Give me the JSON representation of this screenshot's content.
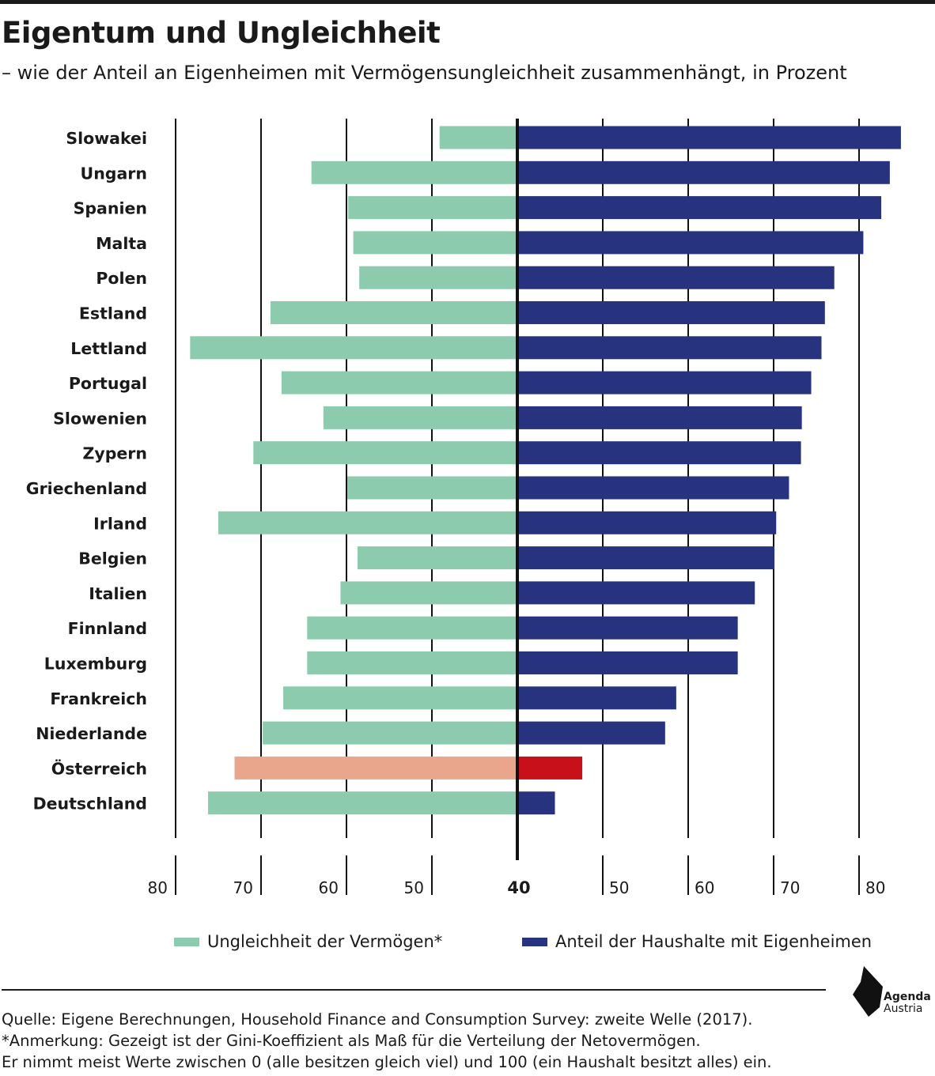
{
  "title": "Eigentum und Ungleichheit",
  "subtitle": "– wie der Anteil an Eigenheimen mit Vermögensungleichheit zusammenhängt, in Prozent",
  "legend": {
    "left_label": "Ungleichheit der Vermögen*",
    "right_label": "Anteil der Haushalte mit Eigenheimen"
  },
  "source": {
    "line1": "Quelle: Eigene Berechnungen, Household Finance and Consumption Survey: zweite Welle (2017).",
    "line2": "*Anmerkung: Gezeigt ist der Gini-Koeffizient als Maß für die Verteilung der Netovermögen.",
    "line3": "Er nimmt meist Werte zwischen 0 (alle besitzen gleich viel) und 100 (ein Haushalt besitzt alles) ein."
  },
  "logo": {
    "line1": "Agenda",
    "line2": "Austria"
  },
  "colors": {
    "inequality": "#8ccbad",
    "ownership": "#27337e",
    "austria_inequality": "#eaa58d",
    "austria_ownership": "#c8101a",
    "axis": "#111111"
  },
  "chart_data": {
    "type": "bar",
    "orientation": "horizontal-diverging",
    "baseline": 40,
    "categories": [
      "Slowakei",
      "Ungarn",
      "Spanien",
      "Malta",
      "Polen",
      "Estland",
      "Lettland",
      "Portugal",
      "Slowenien",
      "Zypern",
      "Griechenland",
      "Irland",
      "Belgien",
      "Italien",
      "Finnland",
      "Luxemburg",
      "Frankreich",
      "Niederlande",
      "Österreich",
      "Deutschland"
    ],
    "highlight": "Österreich",
    "series": [
      {
        "name": "Ungleichheit der Vermögen*",
        "side": "left",
        "values": [
          49.1,
          64.1,
          59.8,
          59.2,
          58.5,
          68.9,
          78.3,
          67.6,
          62.7,
          70.9,
          59.9,
          75.0,
          58.7,
          60.7,
          64.6,
          64.6,
          67.4,
          69.8,
          73.1,
          76.2
        ]
      },
      {
        "name": "Anteil der Haushalte mit Eigenheimen",
        "side": "right",
        "values": [
          84.9,
          83.6,
          82.6,
          80.5,
          77.1,
          76.0,
          75.6,
          74.4,
          73.3,
          73.2,
          71.8,
          70.3,
          70.1,
          67.8,
          65.8,
          65.8,
          58.6,
          57.3,
          47.6,
          44.4
        ]
      }
    ],
    "x_ticks_left": [
      "80",
      "70",
      "60",
      "50"
    ],
    "x_ticks_right": [
      "50",
      "60",
      "70",
      "80"
    ],
    "center_tick": "40",
    "xlim_left": [
      80,
      40
    ],
    "xlim_right": [
      40,
      85
    ]
  }
}
